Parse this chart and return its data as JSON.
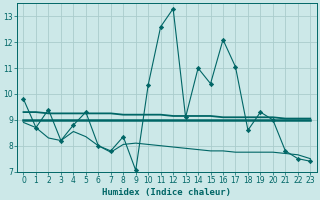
{
  "xlabel": "Humidex (Indice chaleur)",
  "bg_color": "#cce8e8",
  "line_color": "#006666",
  "grid_color": "#aacccc",
  "xlim": [
    -0.5,
    23.5
  ],
  "ylim": [
    7,
    13.5
  ],
  "yticks": [
    7,
    8,
    9,
    10,
    11,
    12,
    13
  ],
  "xticks": [
    0,
    1,
    2,
    3,
    4,
    5,
    6,
    7,
    8,
    9,
    10,
    11,
    12,
    13,
    14,
    15,
    16,
    17,
    18,
    19,
    20,
    21,
    22,
    23
  ],
  "line1_x": [
    0,
    1,
    2,
    3,
    4,
    5,
    6,
    7,
    8,
    9,
    10,
    11,
    12,
    13,
    14,
    15,
    16,
    17,
    18,
    19,
    20,
    21,
    22,
    23
  ],
  "line1_y": [
    9.8,
    8.7,
    9.4,
    8.2,
    8.8,
    9.3,
    8.0,
    7.8,
    8.35,
    7.05,
    10.35,
    12.6,
    13.3,
    9.1,
    11.0,
    10.4,
    12.1,
    11.05,
    8.6,
    9.3,
    9.0,
    7.8,
    7.5,
    7.4
  ],
  "line2_x": [
    0,
    1,
    2,
    3,
    4,
    5,
    6,
    7,
    8,
    9,
    10,
    11,
    12,
    13,
    14,
    15,
    16,
    17,
    18,
    19,
    20,
    21,
    22,
    23
  ],
  "line2_y": [
    9.3,
    9.3,
    9.25,
    9.25,
    9.25,
    9.25,
    9.25,
    9.25,
    9.2,
    9.2,
    9.2,
    9.2,
    9.15,
    9.15,
    9.15,
    9.15,
    9.1,
    9.1,
    9.1,
    9.1,
    9.1,
    9.05,
    9.05,
    9.05
  ],
  "line3_x": [
    0,
    1,
    2,
    3,
    4,
    5,
    6,
    7,
    8,
    9,
    10,
    11,
    12,
    13,
    14,
    15,
    16,
    17,
    18,
    19,
    20,
    21,
    22,
    23
  ],
  "line3_y": [
    9.0,
    9.0,
    9.0,
    9.0,
    9.0,
    9.0,
    9.0,
    9.0,
    9.0,
    9.0,
    9.0,
    9.0,
    9.0,
    9.0,
    9.0,
    9.0,
    9.0,
    9.0,
    9.0,
    9.0,
    9.0,
    9.0,
    9.0,
    9.0
  ],
  "line4_x": [
    0,
    1,
    2,
    3,
    4,
    5,
    6,
    7,
    8,
    9,
    10,
    11,
    12,
    13,
    14,
    15,
    16,
    17,
    18,
    19,
    20,
    21,
    22,
    23
  ],
  "line4_y": [
    8.9,
    8.7,
    8.3,
    8.2,
    8.55,
    8.35,
    8.0,
    7.75,
    8.05,
    8.1,
    8.05,
    8.0,
    7.95,
    7.9,
    7.85,
    7.8,
    7.8,
    7.75,
    7.75,
    7.75,
    7.75,
    7.7,
    7.65,
    7.5
  ]
}
